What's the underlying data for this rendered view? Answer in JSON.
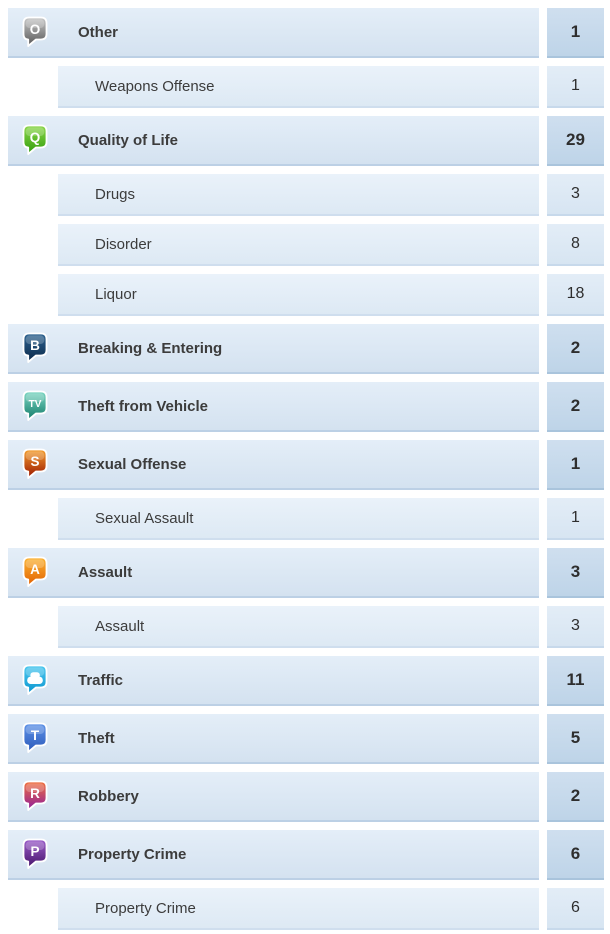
{
  "page": {
    "background": "#ffffff",
    "row_colors": {
      "main_row_top": "#e4eef8",
      "main_row_bottom": "#d4e2f0",
      "main_row_border": "#bcd0e5",
      "sub_row_top": "#eaf2fa",
      "sub_row_bottom": "#dde9f4",
      "main_badge": "#c4d8ea",
      "sub_badge": "#dde9f4",
      "text": "#3c3c3c"
    }
  },
  "list": {
    "rows": [
      {
        "id": "other",
        "label": "Other",
        "count": "1",
        "level": "main",
        "icon": {
          "name": "other-icon",
          "type": "letter",
          "letter": "O",
          "top": "#c9c9c9",
          "bottom": "#555555"
        }
      },
      {
        "id": "weapons-offense",
        "label": "Weapons Offense",
        "count": "1",
        "level": "sub"
      },
      {
        "id": "quality-of-life",
        "label": "Quality of Life",
        "count": "29",
        "level": "main",
        "icon": {
          "name": "quality-of-life-icon",
          "type": "letter",
          "letter": "Q",
          "top": "#8dd74b",
          "bottom": "#2f9c0a"
        }
      },
      {
        "id": "drugs",
        "label": "Drugs",
        "count": "3",
        "level": "sub"
      },
      {
        "id": "disorder",
        "label": "Disorder",
        "count": "8",
        "level": "sub"
      },
      {
        "id": "liquor",
        "label": "Liquor",
        "count": "18",
        "level": "sub"
      },
      {
        "id": "breaking-entering",
        "label": "Breaking & Entering",
        "count": "2",
        "level": "main",
        "icon": {
          "name": "breaking-and-entering-icon",
          "type": "letter",
          "letter": "B",
          "top": "#2f6491",
          "bottom": "#0a2747"
        }
      },
      {
        "id": "theft-from-vehicle",
        "label": "Theft from Vehicle",
        "count": "2",
        "level": "main",
        "icon": {
          "name": "theft-from-vehicle-icon",
          "type": "letter",
          "letter": "TV",
          "top": "#7fd8c4",
          "bottom": "#117a68"
        }
      },
      {
        "id": "sexual-offense",
        "label": "Sexual Offense",
        "count": "1",
        "level": "main",
        "icon": {
          "name": "sexual-offense-icon",
          "type": "letter",
          "letter": "S",
          "top": "#f5a02e",
          "bottom": "#991500"
        }
      },
      {
        "id": "sexual-assault",
        "label": "Sexual Assault",
        "count": "1",
        "level": "sub"
      },
      {
        "id": "assault",
        "label": "Assault",
        "count": "3",
        "level": "main",
        "icon": {
          "name": "assault-icon",
          "type": "letter",
          "letter": "A",
          "top": "#fbb434",
          "bottom": "#e26000"
        }
      },
      {
        "id": "assault-sub",
        "label": "Assault",
        "count": "3",
        "level": "sub"
      },
      {
        "id": "traffic",
        "label": "Traffic",
        "count": "11",
        "level": "main",
        "icon": {
          "name": "traffic-car-icon",
          "type": "car",
          "top": "#4cc8ef",
          "bottom": "#0c95cf"
        }
      },
      {
        "id": "theft",
        "label": "Theft",
        "count": "5",
        "level": "main",
        "icon": {
          "name": "theft-icon",
          "type": "letter",
          "letter": "T",
          "top": "#5f93e8",
          "bottom": "#2a58b9"
        }
      },
      {
        "id": "robbery",
        "label": "Robbery",
        "count": "2",
        "level": "main",
        "icon": {
          "name": "robbery-icon",
          "type": "letter",
          "letter": "R",
          "top": "#f1713c",
          "bottom": "#8e1d9e"
        }
      },
      {
        "id": "property-crime",
        "label": "Property Crime",
        "count": "6",
        "level": "main",
        "icon": {
          "name": "property-crime-icon",
          "type": "letter",
          "letter": "P",
          "top": "#9c5ecb",
          "bottom": "#451268"
        }
      },
      {
        "id": "property-crime-sub",
        "label": "Property Crime",
        "count": "6",
        "level": "sub"
      }
    ]
  }
}
